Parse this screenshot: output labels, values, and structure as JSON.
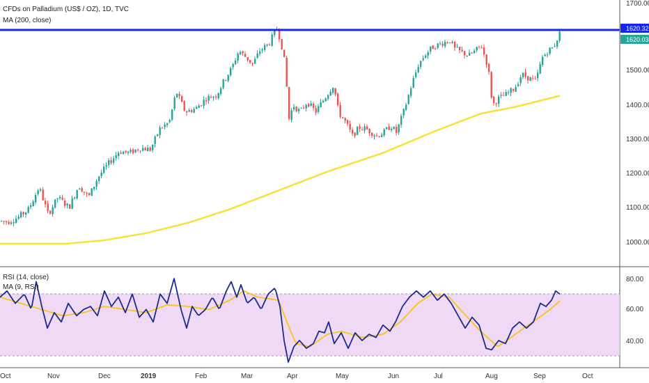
{
  "chart_data": {
    "type": "candlestick",
    "title": "CFDs on Palladium (US$ / OZ), 1D, TVC",
    "ma_legend": "MA (200, close)",
    "rsi_legend": "RSI (14, close)",
    "rsi_ma_legend": "MA (9, RSI)",
    "price_axis": {
      "ticks": [
        "1000.00",
        "1100.00",
        "1200.00",
        "1300.00",
        "1400.00",
        "1500.00",
        "1600.00",
        "1700.00"
      ]
    },
    "rsi_axis": {
      "ticks": [
        "40.00",
        "60.00",
        "80.00"
      ]
    },
    "resistance_level": 1620.32,
    "last_price": "1620.03",
    "resistance_label": "1620.32",
    "x_labels": [
      "Oct",
      "Nov",
      "Dec",
      "2019",
      "Feb",
      "Mar",
      "Apr",
      "May",
      "Jun",
      "Jul",
      "Aug",
      "Sep",
      "Oct"
    ],
    "rsi_band": [
      30,
      70
    ],
    "price_keypoints": [
      [
        0,
        1060
      ],
      [
        10,
        1058
      ],
      [
        24,
        1070
      ],
      [
        40,
        1095
      ],
      [
        55,
        1160
      ],
      [
        68,
        1080
      ],
      [
        82,
        1130
      ],
      [
        98,
        1100
      ],
      [
        112,
        1165
      ],
      [
        126,
        1130
      ],
      [
        140,
        1190
      ],
      [
        155,
        1230
      ],
      [
        170,
        1265
      ],
      [
        185,
        1260
      ],
      [
        200,
        1275
      ],
      [
        215,
        1270
      ],
      [
        228,
        1330
      ],
      [
        242,
        1350
      ],
      [
        252,
        1440
      ],
      [
        265,
        1380
      ],
      [
        280,
        1390
      ],
      [
        295,
        1420
      ],
      [
        310,
        1430
      ],
      [
        320,
        1470
      ],
      [
        332,
        1510
      ],
      [
        342,
        1560
      ],
      [
        352,
        1540
      ],
      [
        362,
        1520
      ],
      [
        372,
        1560
      ],
      [
        385,
        1580
      ],
      [
        396,
        1625
      ],
      [
        402,
        1590
      ],
      [
        408,
        1520
      ],
      [
        414,
        1360
      ],
      [
        420,
        1400
      ],
      [
        430,
        1380
      ],
      [
        440,
        1410
      ],
      [
        452,
        1380
      ],
      [
        465,
        1420
      ],
      [
        478,
        1460
      ],
      [
        485,
        1380
      ],
      [
        495,
        1350
      ],
      [
        505,
        1310
      ],
      [
        515,
        1335
      ],
      [
        525,
        1330
      ],
      [
        540,
        1310
      ],
      [
        550,
        1320
      ],
      [
        560,
        1340
      ],
      [
        568,
        1320
      ],
      [
        580,
        1390
      ],
      [
        590,
        1460
      ],
      [
        600,
        1520
      ],
      [
        610,
        1550
      ],
      [
        620,
        1570
      ],
      [
        632,
        1580
      ],
      [
        645,
        1590
      ],
      [
        652,
        1565
      ],
      [
        662,
        1555
      ],
      [
        672,
        1545
      ],
      [
        682,
        1560
      ],
      [
        690,
        1575
      ],
      [
        700,
        1510
      ],
      [
        706,
        1400
      ],
      [
        715,
        1420
      ],
      [
        725,
        1430
      ],
      [
        738,
        1450
      ],
      [
        748,
        1490
      ],
      [
        758,
        1480
      ],
      [
        768,
        1470
      ],
      [
        778,
        1540
      ],
      [
        786,
        1560
      ],
      [
        794,
        1570
      ],
      [
        800,
        1600
      ],
      [
        805,
        1620
      ]
    ],
    "ma200_keypoints": [
      [
        0,
        994
      ],
      [
        95,
        994
      ],
      [
        150,
        1004
      ],
      [
        210,
        1025
      ],
      [
        270,
        1055
      ],
      [
        330,
        1095
      ],
      [
        400,
        1150
      ],
      [
        470,
        1205
      ],
      [
        550,
        1260
      ],
      [
        620,
        1320
      ],
      [
        690,
        1375
      ],
      [
        740,
        1395
      ],
      [
        805,
        1428
      ]
    ],
    "rsi_keypoints": [
      [
        0,
        68
      ],
      [
        10,
        72
      ],
      [
        22,
        64
      ],
      [
        35,
        70
      ],
      [
        45,
        60
      ],
      [
        52,
        78
      ],
      [
        60,
        62
      ],
      [
        68,
        48
      ],
      [
        78,
        58
      ],
      [
        88,
        52
      ],
      [
        98,
        64
      ],
      [
        110,
        56
      ],
      [
        120,
        60
      ],
      [
        130,
        62
      ],
      [
        140,
        56
      ],
      [
        150,
        72
      ],
      [
        160,
        62
      ],
      [
        170,
        68
      ],
      [
        180,
        58
      ],
      [
        190,
        70
      ],
      [
        200,
        55
      ],
      [
        210,
        60
      ],
      [
        220,
        52
      ],
      [
        230,
        70
      ],
      [
        240,
        64
      ],
      [
        250,
        80
      ],
      [
        260,
        60
      ],
      [
        268,
        48
      ],
      [
        276,
        62
      ],
      [
        285,
        56
      ],
      [
        295,
        60
      ],
      [
        305,
        68
      ],
      [
        315,
        60
      ],
      [
        325,
        72
      ],
      [
        332,
        78
      ],
      [
        340,
        68
      ],
      [
        346,
        76
      ],
      [
        355,
        64
      ],
      [
        365,
        68
      ],
      [
        375,
        60
      ],
      [
        385,
        70
      ],
      [
        395,
        74
      ],
      [
        402,
        62
      ],
      [
        408,
        40
      ],
      [
        414,
        26
      ],
      [
        422,
        36
      ],
      [
        430,
        40
      ],
      [
        440,
        35
      ],
      [
        450,
        38
      ],
      [
        458,
        46
      ],
      [
        466,
        45
      ],
      [
        472,
        52
      ],
      [
        480,
        38
      ],
      [
        490,
        45
      ],
      [
        500,
        35
      ],
      [
        510,
        45
      ],
      [
        520,
        40
      ],
      [
        530,
        44
      ],
      [
        540,
        42
      ],
      [
        550,
        50
      ],
      [
        560,
        46
      ],
      [
        568,
        52
      ],
      [
        578,
        62
      ],
      [
        588,
        68
      ],
      [
        598,
        72
      ],
      [
        608,
        68
      ],
      [
        618,
        72
      ],
      [
        628,
        66
      ],
      [
        638,
        70
      ],
      [
        648,
        64
      ],
      [
        658,
        56
      ],
      [
        668,
        48
      ],
      [
        678,
        55
      ],
      [
        688,
        50
      ],
      [
        698,
        35
      ],
      [
        706,
        34
      ],
      [
        716,
        40
      ],
      [
        726,
        38
      ],
      [
        736,
        48
      ],
      [
        746,
        52
      ],
      [
        756,
        48
      ],
      [
        766,
        52
      ],
      [
        776,
        64
      ],
      [
        784,
        62
      ],
      [
        792,
        66
      ],
      [
        798,
        72
      ],
      [
        804,
        70
      ]
    ],
    "rsi_ma_keypoints": [
      [
        0,
        68
      ],
      [
        30,
        64
      ],
      [
        60,
        60
      ],
      [
        90,
        56
      ],
      [
        120,
        58
      ],
      [
        150,
        62
      ],
      [
        180,
        60
      ],
      [
        210,
        58
      ],
      [
        240,
        63
      ],
      [
        270,
        62
      ],
      [
        300,
        60
      ],
      [
        330,
        66
      ],
      [
        350,
        72
      ],
      [
        370,
        68
      ],
      [
        400,
        66
      ],
      [
        412,
        52
      ],
      [
        425,
        38
      ],
      [
        445,
        36
      ],
      [
        470,
        44
      ],
      [
        490,
        46
      ],
      [
        520,
        42
      ],
      [
        550,
        44
      ],
      [
        575,
        52
      ],
      [
        600,
        64
      ],
      [
        620,
        70
      ],
      [
        645,
        68
      ],
      [
        665,
        58
      ],
      [
        690,
        46
      ],
      [
        715,
        36
      ],
      [
        740,
        44
      ],
      [
        765,
        52
      ],
      [
        790,
        60
      ],
      [
        805,
        66
      ]
    ]
  },
  "colors": {
    "up": "#26a69a",
    "down": "#ef5350",
    "ma": "#f7e337",
    "resistance": "#1326f5",
    "rsi": "#1a2a8f",
    "rsi_ma": "#f5c518",
    "rsi_band": "#efd9f5",
    "last_price_tag": "#26a69a"
  }
}
